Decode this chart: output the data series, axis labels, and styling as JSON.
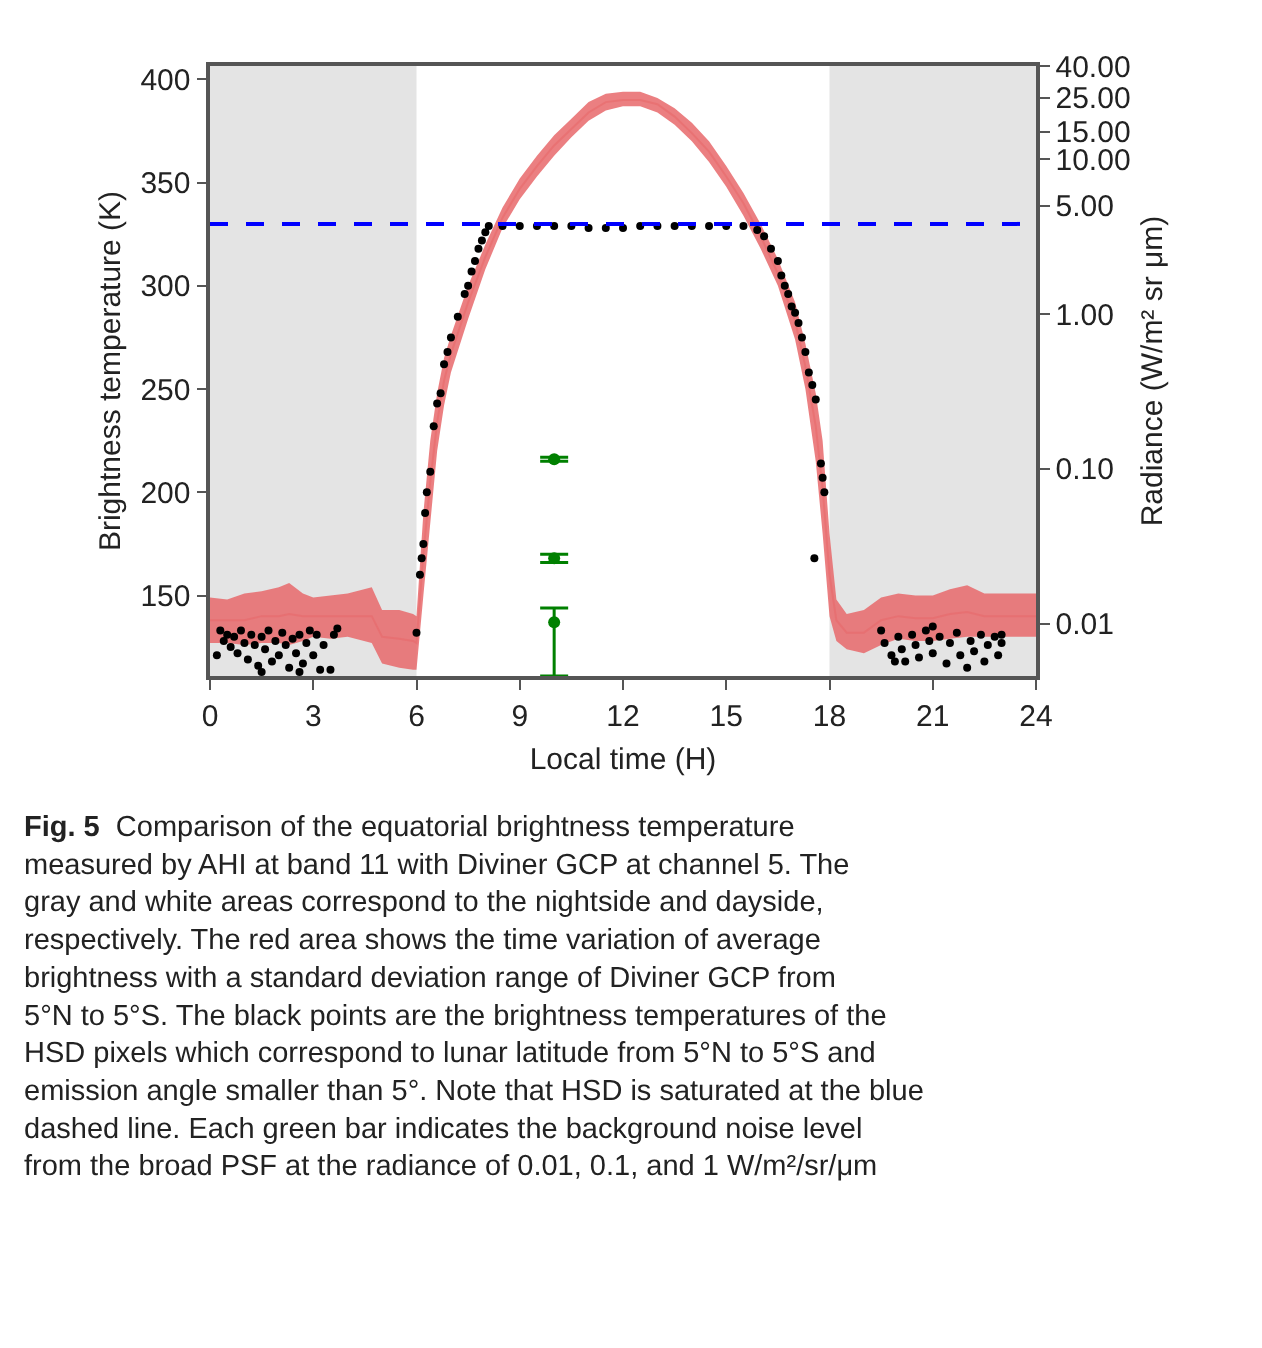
{
  "chart_data": {
    "type": "scatter",
    "xlabel": "Local time (H)",
    "ylabel": "Brightness temperature (K)",
    "y2label": "Radiance (W/m² sr μm)",
    "xlim": [
      0,
      24
    ],
    "xticks": [
      0,
      3,
      6,
      9,
      12,
      15,
      18,
      21,
      24
    ],
    "ylim": [
      111,
      406.5
    ],
    "yticks": [
      150,
      200,
      250,
      300,
      350,
      400
    ],
    "log": "y2",
    "y2lim": [
      0.0046,
      40
    ],
    "y2ticks": [
      {
        "value": 40,
        "label": "40.00"
      },
      {
        "value": 25,
        "label": "25.00"
      },
      {
        "value": 15,
        "label": "15.00"
      },
      {
        "value": 10,
        "label": "10.00"
      },
      {
        "value": 5,
        "label": "5.00"
      },
      {
        "value": 1,
        "label": "1.00"
      },
      {
        "value": 0.1,
        "label": "0.10"
      },
      {
        "value": 0.01,
        "label": "0.01"
      }
    ],
    "grid": false,
    "bands": [
      {
        "axis": "x",
        "from": 0,
        "to": 6,
        "color": "#e4e4e4"
      },
      {
        "axis": "x",
        "from": 18,
        "to": 24,
        "color": "#e4e4e4"
      }
    ],
    "ref_lines": [
      {
        "axis": "y",
        "value": 330,
        "color": "#0000ff",
        "line_style": "dashed"
      }
    ],
    "series": [
      {
        "type": "line",
        "color": "#e8696b",
        "x": [
          0,
          0.5,
          1,
          1.5,
          2,
          2.3,
          2.7,
          3,
          3.5,
          4,
          4.7,
          5,
          5.5,
          5.9,
          6.0,
          6.2,
          6.4,
          6.6,
          6.8,
          7,
          7.5,
          8,
          8.5,
          9,
          9.5,
          10,
          10.5,
          11,
          11.5,
          12,
          12.5,
          13,
          13.5,
          14,
          14.5,
          15,
          15.5,
          16,
          16.5,
          17,
          17.3,
          17.6,
          17.8,
          18,
          18.2,
          18.5,
          19,
          19.5,
          20,
          20.5,
          21,
          21.5,
          22,
          22.5,
          23,
          23.5,
          24
        ],
        "values": [
          138,
          138,
          138,
          140,
          140,
          141,
          140,
          140,
          140,
          140,
          140,
          130,
          129,
          128,
          127,
          170,
          205,
          234,
          254,
          267,
          292,
          314,
          333,
          347,
          358,
          368,
          376,
          384,
          389,
          390,
          390,
          388,
          382,
          374,
          365,
          353,
          340,
          324,
          306,
          283,
          261,
          232,
          202,
          160,
          138,
          132,
          132,
          138,
          140,
          139,
          139,
          141,
          142,
          140,
          140,
          140,
          140
        ],
        "lower": [
          127,
          127,
          126,
          127,
          127,
          126,
          128,
          130,
          129,
          130,
          127,
          117,
          115,
          114,
          114,
          150,
          185,
          220,
          242,
          258,
          284,
          308,
          328,
          342,
          353,
          363,
          372,
          380,
          385,
          387,
          387,
          384,
          378,
          370,
          360,
          348,
          334,
          318,
          300,
          274,
          250,
          215,
          180,
          140,
          128,
          124,
          122,
          126,
          129,
          128,
          128,
          129,
          130,
          130,
          130,
          130,
          130
        ],
        "upper": [
          149,
          148,
          151,
          152,
          154,
          156,
          151,
          149,
          150,
          151,
          154,
          143,
          143,
          141,
          140,
          190,
          225,
          248,
          265,
          276,
          300,
          320,
          338,
          352,
          363,
          373,
          381,
          389,
          393,
          394,
          394,
          391,
          386,
          379,
          370,
          358,
          345,
          330,
          313,
          292,
          272,
          248,
          225,
          180,
          148,
          141,
          143,
          149,
          151,
          150,
          150,
          153,
          155,
          151,
          151,
          151,
          151
        ]
      },
      {
        "color": "#000000",
        "x": [
          0.2,
          0.3,
          0.4,
          0.5,
          0.6,
          0.7,
          0.8,
          0.9,
          1.0,
          1.1,
          1.2,
          1.3,
          1.4,
          1.5,
          1.5,
          1.6,
          1.7,
          1.8,
          1.9,
          2.0,
          2.1,
          2.2,
          2.3,
          2.4,
          2.5,
          2.6,
          2.6,
          2.7,
          2.8,
          2.9,
          3.0,
          3.1,
          3.2,
          3.3,
          3.5,
          3.6,
          3.7,
          6.0,
          6.1,
          6.15,
          6.2,
          6.25,
          6.3,
          6.4,
          6.5,
          6.6,
          6.7,
          6.8,
          6.9,
          7.0,
          7.2,
          7.4,
          7.5,
          7.6,
          7.7,
          7.8,
          7.9,
          8.0,
          8.1,
          8.5,
          9,
          9.5,
          10,
          10.5,
          11,
          11.5,
          12,
          12.5,
          13,
          13.5,
          14,
          14.5,
          15,
          15.5,
          15.9,
          16.1,
          16.3,
          16.5,
          16.6,
          16.7,
          16.8,
          16.9,
          17.0,
          17.1,
          17.2,
          17.3,
          17.4,
          17.5,
          17.6,
          17.56,
          17.75,
          17.8,
          17.85,
          19.5,
          19.6,
          19.8,
          19.9,
          20.0,
          20.1,
          20.2,
          20.4,
          20.5,
          20.6,
          20.8,
          20.9,
          21.0,
          21.0,
          21.2,
          21.4,
          21.5,
          21.7,
          21.8,
          22.0,
          22.1,
          22.2,
          22.4,
          22.5,
          22.6,
          22.8,
          22.9,
          23.0,
          23.0
        ],
        "values": [
          121,
          133,
          128,
          131,
          125,
          130,
          122,
          133,
          127,
          119,
          131,
          126,
          116,
          130,
          113,
          124,
          133,
          118,
          128,
          121,
          132,
          126,
          115,
          129,
          122,
          131,
          113,
          117,
          127,
          133,
          121,
          131,
          114,
          126,
          114,
          131,
          134,
          132,
          160,
          168,
          175,
          190,
          200,
          210,
          232,
          243,
          248,
          262,
          268,
          275,
          285,
          296,
          300,
          307,
          312,
          318,
          322,
          326,
          329,
          329,
          329,
          329,
          329,
          329,
          328,
          328,
          328,
          329,
          329,
          329,
          329,
          329,
          329,
          329,
          327,
          324,
          318,
          312,
          305,
          300,
          296,
          290,
          287,
          282,
          275,
          268,
          258,
          252,
          245,
          168,
          214,
          207,
          200,
          133,
          127,
          121,
          118,
          130,
          124,
          118,
          131,
          126,
          120,
          133,
          128,
          122,
          135,
          130,
          117,
          127,
          132,
          121,
          115,
          128,
          123,
          131,
          118,
          126,
          130,
          121,
          127,
          131
        ]
      },
      {
        "color": "#008000",
        "x": [
          10,
          10,
          10
        ],
        "values": [
          216,
          168,
          137
        ],
        "errors": [
          1,
          2,
          [
            111,
            144
          ]
        ]
      }
    ],
    "annotations": [
      "Fig. 5",
      "Comparison of the equatorial brightness temperature\nmeasured by AHI at band 11 with Diviner GCP at channel 5. The\ngray and white areas correspond to the nightside and dayside,\nrespectively. The red area shows the time variation of average\nbrightness with a standard deviation range of Diviner GCP from\n5°N to 5°S. The black points are the brightness temperatures of the\nHSD pixels which correspond to lunar latitude from 5°N to 5°S and\nemission angle smaller than 5°. Note that HSD is saturated at the blue\ndashed line. Each green bar indicates the background noise level\nfrom the broad PSF at the radiance of 0.01, 0.1, and 1 W/m²/sr/μm"
    ]
  }
}
